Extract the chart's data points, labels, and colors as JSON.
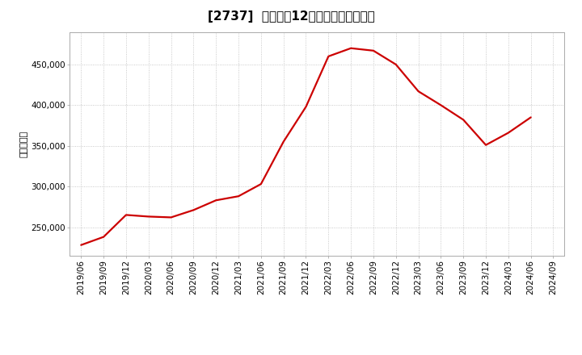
{
  "title": "[2737]  売上高の12か月移動合計の推移",
  "ylabel": "（百万円）",
  "line_color": "#cc0000",
  "background_color": "#ffffff",
  "plot_bg_color": "#ffffff",
  "grid_color": "#bbbbbb",
  "dates": [
    "2019/06",
    "2019/09",
    "2019/12",
    "2020/03",
    "2020/06",
    "2020/09",
    "2020/12",
    "2021/03",
    "2021/06",
    "2021/09",
    "2021/12",
    "2022/03",
    "2022/06",
    "2022/09",
    "2022/12",
    "2023/03",
    "2023/06",
    "2023/09",
    "2023/12",
    "2024/03",
    "2024/06",
    "2024/09"
  ],
  "values": [
    228000,
    238000,
    265000,
    263000,
    262000,
    271000,
    283000,
    288000,
    303000,
    355000,
    398000,
    460000,
    470000,
    467000,
    450000,
    417000,
    400000,
    382000,
    351000,
    366000,
    385000,
    null
  ],
  "yticks": [
    250000,
    300000,
    350000,
    400000,
    450000
  ],
  "ylim": [
    215000,
    490000
  ],
  "title_fontsize": 11,
  "label_fontsize": 8,
  "tick_fontsize": 7.5
}
